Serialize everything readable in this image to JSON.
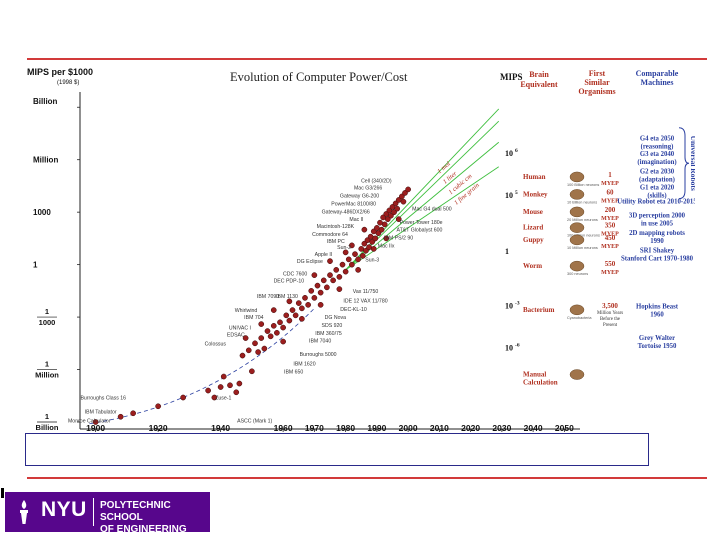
{
  "chart_data": {
    "type": "scatter",
    "title": "Evolution of Computer Power/Cost",
    "ylabel": "MIPS per $1000",
    "ylabel_note": "(1998 $)",
    "x_tick_labels": [
      "1900",
      "1920",
      "1940",
      "1960",
      "1970",
      "1980",
      "1990",
      "2000",
      "2010",
      "2020",
      "2030",
      "2040",
      "2050"
    ],
    "y_tick_labels": [
      "Billion",
      "Million",
      "1000",
      "1",
      "1/1000",
      "1/Million",
      "1/Billion"
    ],
    "xlim": [
      1895,
      2055
    ],
    "ylim_log10": [
      -9.4,
      9.3
    ],
    "points": [
      {
        "x": 1900,
        "y": -9.0
      },
      {
        "x": 1908,
        "y": -8.7
      },
      {
        "x": 1912,
        "y": -8.5
      },
      {
        "x": 1920,
        "y": -8.1
      },
      {
        "x": 1928,
        "y": -7.6
      },
      {
        "x": 1936,
        "y": -7.2
      },
      {
        "x": 1938,
        "y": -7.6
      },
      {
        "x": 1940,
        "y": -7.0
      },
      {
        "x": 1941,
        "y": -6.4
      },
      {
        "x": 1943,
        "y": -6.9
      },
      {
        "x": 1945,
        "y": -7.3
      },
      {
        "x": 1946,
        "y": -6.8
      },
      {
        "x": 1947,
        "y": -5.2
      },
      {
        "x": 1949,
        "y": -4.9
      },
      {
        "x": 1950,
        "y": -6.1
      },
      {
        "x": 1951,
        "y": -4.5
      },
      {
        "x": 1952,
        "y": -5.0
      },
      {
        "x": 1953,
        "y": -4.2
      },
      {
        "x": 1954,
        "y": -4.8
      },
      {
        "x": 1955,
        "y": -3.8
      },
      {
        "x": 1956,
        "y": -4.1
      },
      {
        "x": 1957,
        "y": -3.5
      },
      {
        "x": 1958,
        "y": -3.9
      },
      {
        "x": 1959,
        "y": -3.3
      },
      {
        "x": 1960,
        "y": -3.6
      },
      {
        "x": 1961,
        "y": -2.9
      },
      {
        "x": 1962,
        "y": -3.2
      },
      {
        "x": 1963,
        "y": -2.6
      },
      {
        "x": 1964,
        "y": -2.9
      },
      {
        "x": 1965,
        "y": -2.2
      },
      {
        "x": 1966,
        "y": -2.5
      },
      {
        "x": 1967,
        "y": -1.9
      },
      {
        "x": 1968,
        "y": -2.3
      },
      {
        "x": 1969,
        "y": -1.5
      },
      {
        "x": 1970,
        "y": -1.9
      },
      {
        "x": 1971,
        "y": -1.2
      },
      {
        "x": 1972,
        "y": -1.6
      },
      {
        "x": 1973,
        "y": -0.9
      },
      {
        "x": 1974,
        "y": -1.3
      },
      {
        "x": 1975,
        "y": -0.6
      },
      {
        "x": 1976,
        "y": -0.9
      },
      {
        "x": 1977,
        "y": -0.3
      },
      {
        "x": 1978,
        "y": -0.7
      },
      {
        "x": 1979,
        "y": 0.0
      },
      {
        "x": 1980,
        "y": -0.4
      },
      {
        "x": 1981,
        "y": 0.3
      },
      {
        "x": 1982,
        "y": 0.0
      },
      {
        "x": 1983,
        "y": 0.6
      },
      {
        "x": 1984,
        "y": 0.3
      },
      {
        "x": 1985,
        "y": 0.9
      },
      {
        "x": 1985.5,
        "y": 0.5
      },
      {
        "x": 1986,
        "y": 1.2
      },
      {
        "x": 1986.5,
        "y": 0.8
      },
      {
        "x": 1987,
        "y": 1.4
      },
      {
        "x": 1987.5,
        "y": 1.0
      },
      {
        "x": 1988,
        "y": 1.6
      },
      {
        "x": 1988.5,
        "y": 1.3
      },
      {
        "x": 1989,
        "y": 1.9
      },
      {
        "x": 1989.5,
        "y": 1.5
      },
      {
        "x": 1990,
        "y": 2.1
      },
      {
        "x": 1990.5,
        "y": 1.8
      },
      {
        "x": 1991,
        "y": 2.4
      },
      {
        "x": 1991.5,
        "y": 2.0
      },
      {
        "x": 1992,
        "y": 2.7
      },
      {
        "x": 1992.5,
        "y": 2.3
      },
      {
        "x": 1993,
        "y": 2.9
      },
      {
        "x": 1993.5,
        "y": 2.6
      },
      {
        "x": 1994,
        "y": 3.1
      },
      {
        "x": 1994.5,
        "y": 2.8
      },
      {
        "x": 1995,
        "y": 3.3
      },
      {
        "x": 1995.5,
        "y": 3.0
      },
      {
        "x": 1996,
        "y": 3.5
      },
      {
        "x": 1996.5,
        "y": 3.2
      },
      {
        "x": 1997,
        "y": 3.7
      },
      {
        "x": 1998,
        "y": 3.9
      },
      {
        "x": 1998.5,
        "y": 3.6
      },
      {
        "x": 1999,
        "y": 4.1
      },
      {
        "x": 2000,
        "y": 4.3
      },
      {
        "x": 1984,
        "y": -0.3
      },
      {
        "x": 1978,
        "y": -1.4
      },
      {
        "x": 1972,
        "y": -2.3
      },
      {
        "x": 1966,
        "y": -3.1
      },
      {
        "x": 1960,
        "y": -4.4
      },
      {
        "x": 1962,
        "y": -2.1
      },
      {
        "x": 1975,
        "y": 0.2
      },
      {
        "x": 1982,
        "y": 1.1
      },
      {
        "x": 1989,
        "y": 0.9
      },
      {
        "x": 1993,
        "y": 1.5
      },
      {
        "x": 1997,
        "y": 2.6
      },
      {
        "x": 1986,
        "y": 2.0
      },
      {
        "x": 1980,
        "y": 0.7
      },
      {
        "x": 1970,
        "y": -0.6
      },
      {
        "x": 1957,
        "y": -2.6
      },
      {
        "x": 1953,
        "y": -3.4
      },
      {
        "x": 1948,
        "y": -4.2
      }
    ],
    "labels_left": [
      {
        "text": "Cell (340/2D)",
        "x": 1996,
        "y": 4.8
      },
      {
        "text": "Mac G3/266",
        "x": 1993,
        "y": 4.4
      },
      {
        "text": "Gateway G6-200",
        "x": 1992,
        "y": 3.95
      },
      {
        "text": "PowerMac 8100/80",
        "x": 1991,
        "y": 3.5
      },
      {
        "text": "Gateway-486DX2/66",
        "x": 1989,
        "y": 3.05
      },
      {
        "text": "Mac II",
        "x": 1987,
        "y": 2.6
      },
      {
        "text": "Macintosh-128K",
        "x": 1984,
        "y": 2.2
      },
      {
        "text": "Commodore 64",
        "x": 1982,
        "y": 1.75
      },
      {
        "text": "IBM PC",
        "x": 1981,
        "y": 1.35
      },
      {
        "text": "Sun-2",
        "x": 1983,
        "y": 1.0
      },
      {
        "text": "Apple II",
        "x": 1977,
        "y": 0.6
      },
      {
        "text": "DG Eclipse",
        "x": 1974,
        "y": 0.2
      },
      {
        "text": "CDC 7600",
        "x": 1969,
        "y": -0.5
      },
      {
        "text": "DEC PDP-10",
        "x": 1968,
        "y": -0.9
      },
      {
        "text": "IBM 7090",
        "x": 1960,
        "y": -1.8
      },
      {
        "text": "IBM 1130",
        "x": 1966,
        "y": -1.8
      },
      {
        "text": "Whirlwind",
        "x": 1953,
        "y": -2.6
      },
      {
        "text": "IBM 704",
        "x": 1955,
        "y": -3.0
      },
      {
        "text": "UNIVAC I",
        "x": 1951,
        "y": -3.6
      },
      {
        "text": "EDSAC",
        "x": 1949,
        "y": -4.0
      },
      {
        "text": "Colossus",
        "x": 1943,
        "y": -4.5
      },
      {
        "text": "Burroughs Class 16",
        "x": 1911,
        "y": -7.6
      },
      {
        "text": "IBM Tabulator",
        "x": 1908,
        "y": -8.4
      },
      {
        "text": "Monroe Calculator",
        "x": 1906,
        "y": -8.9
      }
    ],
    "labels_right": [
      {
        "text": "Mac G4 dual 500",
        "x": 2000,
        "y": 3.2
      },
      {
        "text": "Power Tower 180e",
        "x": 1996,
        "y": 2.45
      },
      {
        "text": "AT&T Globalyst 600",
        "x": 1995,
        "y": 2.0
      },
      {
        "text": "IBM PS/2 90",
        "x": 1991,
        "y": 1.55
      },
      {
        "text": "Mac IIx",
        "x": 1989,
        "y": 1.1
      },
      {
        "text": "Sun-3",
        "x": 1985,
        "y": 0.3
      },
      {
        "text": "Vax 11/750",
        "x": 1981,
        "y": -1.5
      },
      {
        "text": "IDE 12 VAX 11/780",
        "x": 1978,
        "y": -2.05
      },
      {
        "text": "DEC-KL-10",
        "x": 1977,
        "y": -2.55
      },
      {
        "text": "DG Nova",
        "x": 1972,
        "y": -3.0
      },
      {
        "text": "SDS 920",
        "x": 1971,
        "y": -3.45
      },
      {
        "text": "IBM 360/75",
        "x": 1969,
        "y": -3.9
      },
      {
        "text": "IBM 7040",
        "x": 1967,
        "y": -4.35
      },
      {
        "text": "Burroughs 5000",
        "x": 1964,
        "y": -5.1
      },
      {
        "text": "IBM 1620",
        "x": 1962,
        "y": -5.65
      },
      {
        "text": "IBM 650",
        "x": 1959,
        "y": -6.1
      },
      {
        "text": "Zuse-1",
        "x": 1937,
        "y": -7.6
      },
      {
        "text": "ASCC (Mark 1)",
        "x": 1944,
        "y": -8.9
      }
    ],
    "trend_labels": [
      "1 mol",
      "1 liter",
      "1 cubic cm",
      "1 fine grain"
    ],
    "mips_scale": {
      "title": "MIPS",
      "ticks": [
        {
          "base": "10",
          "exp": "6",
          "y": 6.2
        },
        {
          "base": "10",
          "exp": "5",
          "y": 3.8
        },
        {
          "base": "1",
          "exp": "",
          "y": 0.6
        },
        {
          "base": "10",
          "exp": "-3",
          "y": -2.5
        },
        {
          "base": "10",
          "exp": "-6",
          "y": -4.9
        }
      ]
    },
    "organisms_header": {
      "brain": "Brain Equivalent",
      "first": "First Similar Organisms",
      "machines": "Comparable Machines"
    },
    "organisms": [
      {
        "name": "Human",
        "myep": "1 MYEP",
        "note": "100 Billion neurons",
        "y": 4.9
      },
      {
        "name": "Monkey",
        "myep": "60 MYEP",
        "note": "10 Billion neurons",
        "y": 3.9
      },
      {
        "name": "Mouse",
        "myep": "200 MYEP",
        "note": "20 Million neurons",
        "y": 2.9
      },
      {
        "name": "Lizard",
        "myep": "350 MYEP",
        "note": "100 Million neurons",
        "y": 2.0
      },
      {
        "name": "Guppy",
        "myep": "450 MYEP",
        "note": "10 Million neurons",
        "y": 1.3
      },
      {
        "name": "Worm",
        "myep": "550 MYEP",
        "note": "300 neurons",
        "y": -0.2
      },
      {
        "name": "Bacterium",
        "myep": "3,500 Million Years Before the Present",
        "note": "Cyanobacteria",
        "y": -2.7
      },
      {
        "name": "Manual Calculation",
        "myep": "",
        "note": "",
        "y": -6.4
      }
    ],
    "machines": [
      {
        "text": "G4 eta 2050 (reasoning)",
        "y": 7.1
      },
      {
        "text": "G3 eta 2040 (imagination)",
        "y": 6.2
      },
      {
        "text": "G2 eta 2030 (adaptation)",
        "y": 5.2
      },
      {
        "text": "G1 eta 2020 (skills)",
        "y": 4.3
      },
      {
        "text": "Utility Robot eta 2010-2015",
        "y": 3.5
      },
      {
        "text": "3D perception 2000 in use 2005",
        "y": 2.7
      },
      {
        "text": "2D mapping robots 1990",
        "y": 1.7
      },
      {
        "text": "SRI Shakey Stanford Cart 1970-1980",
        "y": 0.7
      },
      {
        "text": "Hopkins Beast 1960",
        "y": -2.5
      },
      {
        "text": "Grey Walter Tortoise 1950",
        "y": -4.3
      }
    ],
    "side_label": "Universal Robots",
    "colors": {
      "point": "#9b1e1e",
      "trend": "#3fbf3f",
      "bracket": "#2a3fa0",
      "label_right": "#2a3fa0",
      "organism": "#b03020",
      "axis": "#222222"
    }
  },
  "footer": {
    "logo_nyu": "NYU",
    "logo_line1": "POLYTECHNIC SCHOOL",
    "logo_line2": "OF ENGINEERING"
  }
}
